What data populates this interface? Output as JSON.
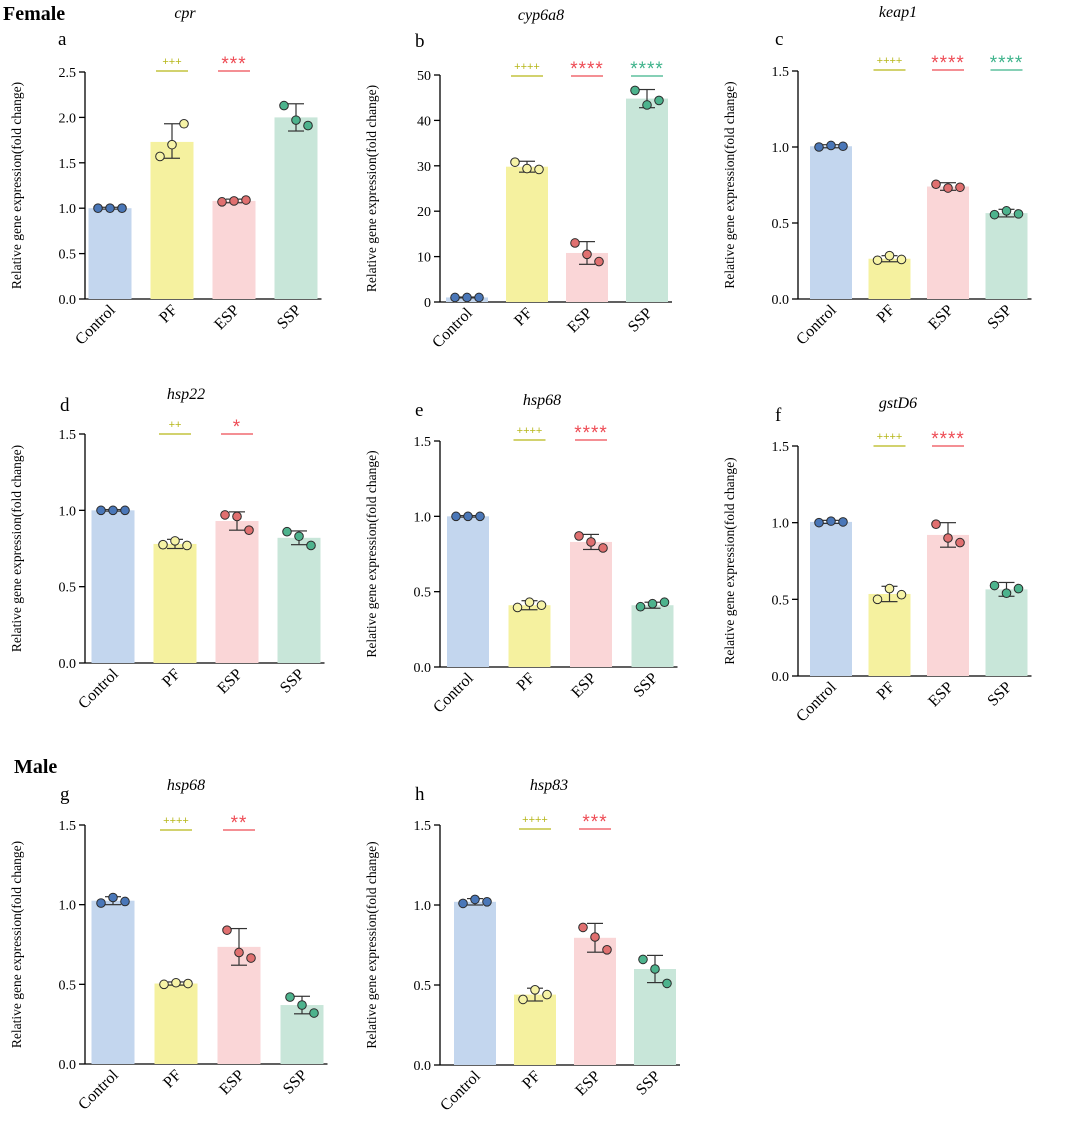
{
  "figure": {
    "sections": {
      "female": "Female",
      "male": "Male"
    },
    "ylabel": "Relative gene expression(fold change)"
  },
  "colors": {
    "Control": {
      "fill": "#c3d6ee",
      "dot": "#4a77b8"
    },
    "PF": {
      "fill": "#f5f19f",
      "dot": "#f6f3a6"
    },
    "ESP": {
      "fill": "#fad6d7",
      "dot": "#e07070"
    },
    "SSP": {
      "fill": "#c8e6d9",
      "dot": "#4db38d"
    },
    "sig_PF": "#b6b618",
    "sig_ESP": "#ee4c55",
    "sig_SSP": "#3eb38b"
  },
  "chart_data": [
    {
      "id": "a",
      "letter": "a",
      "type": "bar",
      "gene": "cpr",
      "categories": [
        "Control",
        "PF",
        "ESP",
        "SSP"
      ],
      "values": [
        1.0,
        1.73,
        1.08,
        2.0
      ],
      "err_top": [
        1.01,
        1.93,
        1.1,
        2.15
      ],
      "err_bot": [
        0.99,
        1.55,
        1.06,
        1.85
      ],
      "points": [
        [
          1.0,
          1.0,
          1.0
        ],
        [
          1.57,
          1.7,
          1.93
        ],
        [
          1.07,
          1.08,
          1.09
        ],
        [
          2.13,
          1.97,
          1.91
        ]
      ],
      "ylim": [
        0,
        2.5
      ],
      "yticks": [
        "0.0",
        "0.5",
        "1.0",
        "1.5",
        "2.0",
        "2.5"
      ],
      "ylabel": "Relative gene expression(fold change)",
      "sig": [
        {
          "label": "+++",
          "group": "PF"
        },
        {
          "label": "***",
          "group": "ESP"
        }
      ]
    },
    {
      "id": "b",
      "letter": "b",
      "type": "bar",
      "gene": "cyp6a8",
      "categories": [
        "Control",
        "PF",
        "ESP",
        "SSP"
      ],
      "values": [
        1.0,
        29.8,
        10.8,
        44.8
      ],
      "err_top": [
        1.1,
        31.0,
        13.3,
        46.8
      ],
      "err_bot": [
        0.9,
        28.6,
        8.3,
        42.8
      ],
      "points": [
        [
          1.0,
          1.0,
          1.0
        ],
        [
          30.8,
          29.4,
          29.2
        ],
        [
          13.0,
          10.5,
          8.9
        ],
        [
          46.6,
          43.4,
          44.4
        ]
      ],
      "ylim": [
        0,
        50
      ],
      "yticks": [
        "0",
        "10",
        "20",
        "30",
        "40",
        "50"
      ],
      "ylabel": "Relative gene expression(fold change)",
      "sig": [
        {
          "label": "++++",
          "group": "PF"
        },
        {
          "label": "****",
          "group": "ESP"
        },
        {
          "label": "****",
          "group": "SSP"
        }
      ]
    },
    {
      "id": "c",
      "letter": "c",
      "type": "bar",
      "gene": "keap1",
      "categories": [
        "Control",
        "PF",
        "ESP",
        "SSP"
      ],
      "values": [
        1.005,
        0.265,
        0.74,
        0.565
      ],
      "err_top": [
        1.015,
        0.285,
        0.765,
        0.59
      ],
      "err_bot": [
        0.995,
        0.245,
        0.715,
        0.54
      ],
      "points": [
        [
          1.0,
          1.01,
          1.005
        ],
        [
          0.255,
          0.285,
          0.26
        ],
        [
          0.755,
          0.73,
          0.735
        ],
        [
          0.555,
          0.58,
          0.56
        ]
      ],
      "ylim": [
        0,
        1.5
      ],
      "yticks": [
        "0.0",
        "0.5",
        "1.0",
        "1.5"
      ],
      "ylabel": "Relative gene expression(fold change)",
      "sig": [
        {
          "label": "++++",
          "group": "PF"
        },
        {
          "label": "****",
          "group": "ESP"
        },
        {
          "label": "****",
          "group": "SSP"
        }
      ]
    },
    {
      "id": "d",
      "letter": "d",
      "type": "bar",
      "gene": "hsp22",
      "categories": [
        "Control",
        "PF",
        "ESP",
        "SSP"
      ],
      "values": [
        1.0,
        0.78,
        0.93,
        0.82
      ],
      "err_top": [
        1.005,
        0.81,
        0.99,
        0.865
      ],
      "err_bot": [
        0.995,
        0.75,
        0.87,
        0.775
      ],
      "points": [
        [
          1.0,
          1.0,
          1.0
        ],
        [
          0.775,
          0.8,
          0.77
        ],
        [
          0.97,
          0.96,
          0.87
        ],
        [
          0.86,
          0.83,
          0.77
        ]
      ],
      "ylim": [
        0,
        1.5
      ],
      "yticks": [
        "0.0",
        "0.5",
        "1.0",
        "1.5"
      ],
      "ylabel": "Relative gene expression(fold change)",
      "sig": [
        {
          "label": "++",
          "group": "PF"
        },
        {
          "label": "*",
          "group": "ESP"
        }
      ]
    },
    {
      "id": "e",
      "letter": "e",
      "type": "bar",
      "gene": "hsp68",
      "categories": [
        "Control",
        "PF",
        "ESP",
        "SSP"
      ],
      "values": [
        1.0,
        0.41,
        0.83,
        0.41
      ],
      "err_top": [
        1.005,
        0.44,
        0.88,
        0.43
      ],
      "err_bot": [
        0.995,
        0.38,
        0.78,
        0.39
      ],
      "points": [
        [
          1.0,
          1.0,
          1.0
        ],
        [
          0.395,
          0.43,
          0.41
        ],
        [
          0.87,
          0.83,
          0.79
        ],
        [
          0.4,
          0.42,
          0.43
        ]
      ],
      "ylim": [
        0,
        1.5
      ],
      "yticks": [
        "0.0",
        "0.5",
        "1.0",
        "1.5"
      ],
      "ylabel": "Relative gene expression(fold change)",
      "sig": [
        {
          "label": "++++",
          "group": "PF"
        },
        {
          "label": "****",
          "group": "ESP"
        }
      ]
    },
    {
      "id": "f",
      "letter": "f",
      "type": "bar",
      "gene": "gstD6",
      "categories": [
        "Control",
        "PF",
        "ESP",
        "SSP"
      ],
      "values": [
        1.005,
        0.535,
        0.92,
        0.565
      ],
      "err_top": [
        1.015,
        0.585,
        1.0,
        0.61
      ],
      "err_bot": [
        0.995,
        0.485,
        0.84,
        0.52
      ],
      "points": [
        [
          1.0,
          1.01,
          1.005
        ],
        [
          0.5,
          0.57,
          0.53
        ],
        [
          0.99,
          0.9,
          0.87
        ],
        [
          0.59,
          0.54,
          0.57
        ]
      ],
      "ylim": [
        0,
        1.5
      ],
      "yticks": [
        "0.0",
        "0.5",
        "1.0",
        "1.5"
      ],
      "ylabel": "Relative gene expression(fold change)",
      "sig": [
        {
          "label": "++++",
          "group": "PF"
        },
        {
          "label": "****",
          "group": "ESP"
        }
      ]
    },
    {
      "id": "g",
      "letter": "g",
      "type": "bar",
      "gene": "hsp68",
      "categories": [
        "Control",
        "PF",
        "ESP",
        "SSP"
      ],
      "values": [
        1.025,
        0.505,
        0.735,
        0.37
      ],
      "err_top": [
        1.05,
        0.515,
        0.85,
        0.425
      ],
      "err_bot": [
        1.0,
        0.495,
        0.62,
        0.315
      ],
      "points": [
        [
          1.01,
          1.045,
          1.02
        ],
        [
          0.5,
          0.51,
          0.505
        ],
        [
          0.84,
          0.7,
          0.665
        ],
        [
          0.42,
          0.37,
          0.32
        ]
      ],
      "ylim": [
        0,
        1.5
      ],
      "yticks": [
        "0.0",
        "0.5",
        "1.0",
        "1.5"
      ],
      "ylabel": "Relative gene expression(fold change)",
      "sig": [
        {
          "label": "++++",
          "group": "PF"
        },
        {
          "label": "**",
          "group": "ESP"
        }
      ]
    },
    {
      "id": "h",
      "letter": "h",
      "type": "bar",
      "gene": "hsp83",
      "categories": [
        "Control",
        "PF",
        "ESP",
        "SSP"
      ],
      "values": [
        1.02,
        0.44,
        0.795,
        0.6
      ],
      "err_top": [
        1.04,
        0.48,
        0.885,
        0.685
      ],
      "err_bot": [
        1.0,
        0.4,
        0.705,
        0.515
      ],
      "points": [
        [
          1.01,
          1.035,
          1.02
        ],
        [
          0.41,
          0.47,
          0.44
        ],
        [
          0.86,
          0.8,
          0.72
        ],
        [
          0.66,
          0.6,
          0.51
        ]
      ],
      "ylim": [
        0,
        1.5
      ],
      "yticks": [
        "0.0",
        "0.5",
        "1.0",
        "1.5"
      ],
      "ylabel": "Relative gene expression(fold change)",
      "sig": [
        {
          "label": "++++",
          "group": "PF"
        },
        {
          "label": "***",
          "group": "ESP"
        }
      ]
    }
  ]
}
